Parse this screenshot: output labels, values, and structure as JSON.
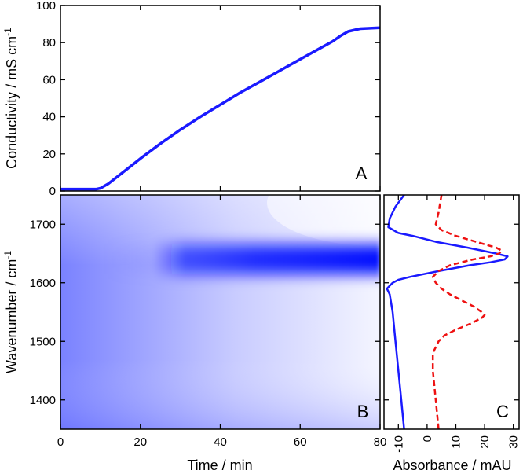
{
  "chart_data": [
    {
      "panel": "A",
      "type": "line",
      "xlabel": "",
      "ylabel": "Conductivity / mS cm",
      "ylabel_superscript": "-1",
      "xlim": [
        0,
        80
      ],
      "ylim": [
        0,
        100
      ],
      "yticks": [
        0,
        20,
        40,
        60,
        80,
        100
      ],
      "colors": {
        "line": "#1a1aff"
      },
      "series": [
        {
          "x": [
            0,
            9,
            10,
            12,
            15,
            20,
            25,
            30,
            35,
            40,
            45,
            50,
            55,
            60,
            65,
            68,
            70,
            72,
            75,
            80
          ],
          "y": [
            1,
            1,
            1.5,
            4,
            9,
            17.5,
            25.5,
            33,
            40,
            46.5,
            53,
            59,
            65,
            71,
            77,
            80.5,
            83.5,
            86,
            87.5,
            88
          ]
        }
      ]
    },
    {
      "panel": "B",
      "type": "heatmap",
      "xlabel": "Time / min",
      "ylabel": "Wavenumber / cm",
      "ylabel_superscript": "-1",
      "xlim": [
        0,
        80
      ],
      "ylim": [
        1350,
        1750
      ],
      "xticks": [
        0,
        20,
        40,
        60,
        80
      ],
      "yticks": [
        1400,
        1500,
        1600,
        1700
      ],
      "colors": {
        "low": "#ffffff",
        "high": "#0010ff"
      },
      "band_center": 1640,
      "band_onset_time": 15
    },
    {
      "panel": "C",
      "type": "line",
      "xlabel": "Absorbance / mAU",
      "ylabel": "",
      "xlim": [
        -15,
        32
      ],
      "ylim": [
        1350,
        1750
      ],
      "xticks": [
        -10,
        0,
        10,
        20,
        30
      ],
      "series": [
        {
          "style": "solid",
          "color": "#1a1aff",
          "wavenumber": [
            1750,
            1730,
            1710,
            1695,
            1685,
            1680,
            1670,
            1660,
            1650,
            1645,
            1640,
            1635,
            1630,
            1620,
            1610,
            1605,
            1600,
            1595,
            1590,
            1580,
            1550,
            1500,
            1450,
            1400,
            1350
          ],
          "absorbance": [
            -8,
            -11,
            -13,
            -13.5,
            -10,
            -5,
            3,
            14,
            24,
            28,
            27,
            22,
            15,
            4,
            -6,
            -10,
            -12,
            -13,
            -14,
            -13,
            -12,
            -11,
            -10,
            -9,
            -8
          ]
        },
        {
          "style": "dashed",
          "color": "#ee1111",
          "wavenumber": [
            1750,
            1720,
            1700,
            1690,
            1680,
            1670,
            1660,
            1655,
            1650,
            1645,
            1640,
            1630,
            1620,
            1610,
            1600,
            1590,
            1580,
            1570,
            1560,
            1550,
            1545,
            1540,
            1530,
            1520,
            1510,
            1500,
            1480,
            1450,
            1400,
            1350
          ],
          "absorbance": [
            5,
            4,
            3,
            5,
            10,
            17,
            24,
            26,
            25,
            22,
            16,
            8,
            4,
            2,
            3,
            5,
            8,
            12,
            16,
            19,
            20,
            19,
            15,
            10,
            6,
            4,
            2,
            2,
            3,
            4
          ]
        }
      ]
    }
  ]
}
